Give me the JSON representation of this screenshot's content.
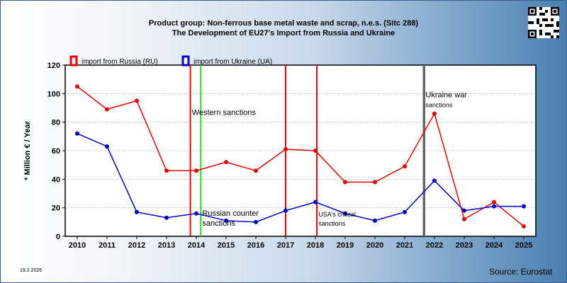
{
  "title_line1": "Product group: Non-ferrous base metal waste and scrap, n.e.s. (Sitc 288)",
  "title_line2": "The Development of EU27's Import from  Russia and Ukraine",
  "date": "19.2.2026",
  "source": "Source: Eurostat",
  "colors": {
    "russia": "#ee0000",
    "ukraine": "#0000cc",
    "green_marker": "#22dd22",
    "grey_marker": "#666666"
  },
  "chart_data": {
    "type": "line",
    "ylabel": "* Million € / Year",
    "xlabel": "",
    "ylim": [
      0,
      120
    ],
    "yticks": [
      0,
      20,
      40,
      60,
      80,
      100,
      120
    ],
    "x": [
      "2010",
      "2011",
      "2012",
      "2013",
      "2014",
      "2015",
      "2016",
      "2017",
      "2018",
      "2019",
      "2020",
      "2021",
      "2022",
      "2023",
      "2024",
      "2025"
    ],
    "legend_position": "top-left",
    "grid": true,
    "series": [
      {
        "name": "import from Russia (RU)",
        "color": "#ee0000",
        "values": [
          105,
          89,
          95,
          46,
          46,
          52,
          46,
          61,
          60,
          38,
          38,
          49,
          86,
          12,
          24,
          7
        ]
      },
      {
        "name": "import from Ukraine (UA)",
        "color": "#0000cc",
        "values": [
          72,
          63,
          17,
          13,
          16,
          11,
          10,
          18,
          24,
          16,
          11,
          17,
          39,
          18,
          21,
          21
        ]
      }
    ],
    "markers": [
      {
        "x": 2013.8,
        "color": "#ee0000"
      },
      {
        "x": 2014.15,
        "color": "#22dd22"
      },
      {
        "x": 2017.0,
        "color": "#ee0000"
      },
      {
        "x": 2018.05,
        "color": "#ee0000"
      },
      {
        "x": 2021.65,
        "color": "#666666"
      }
    ],
    "annotations": [
      {
        "text": "Western sanctions",
        "x": 2013.85,
        "y": 85
      },
      {
        "text": "Russian counter",
        "x": 2014.2,
        "y": 14.5
      },
      {
        "text": "sanctions",
        "x": 2014.2,
        "y": 7.5
      },
      {
        "text": "USA's critical",
        "x": 2018.1,
        "y": 14
      },
      {
        "text": "sanctions",
        "x": 2018.1,
        "y": 7.5
      },
      {
        "text": "Ukraine war",
        "x": 2021.7,
        "y": 97.5
      },
      {
        "text": "sanctions",
        "x": 2021.7,
        "y": 90.5
      }
    ]
  }
}
